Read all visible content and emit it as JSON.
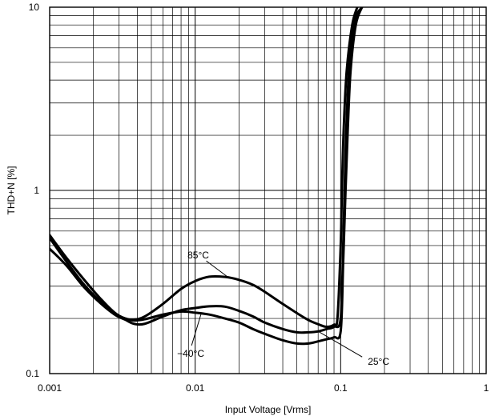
{
  "chart_data": {
    "type": "line",
    "xlabel": "Input Voltage [Vrms]",
    "ylabel": "THD+N [%]",
    "x_scale": "log",
    "y_scale": "log",
    "xlim": [
      0.001,
      1
    ],
    "ylim": [
      0.1,
      10
    ],
    "grid": true,
    "x_ticks": [
      "0.001",
      "0.01",
      "0.1",
      "1"
    ],
    "y_ticks": [
      "0.1",
      "1",
      "10"
    ],
    "series": [
      {
        "name": "85°C",
        "x": [
          0.001,
          0.0013,
          0.0017,
          0.0022,
          0.0028,
          0.0033,
          0.0038,
          0.0045,
          0.006,
          0.008,
          0.01,
          0.0125,
          0.016,
          0.02,
          0.025,
          0.03,
          0.04,
          0.05,
          0.06,
          0.07,
          0.08,
          0.09,
          0.095,
          0.1,
          0.102,
          0.105,
          0.11,
          0.12,
          0.13
        ],
        "values": [
          0.57,
          0.43,
          0.33,
          0.26,
          0.215,
          0.2,
          0.197,
          0.205,
          0.24,
          0.29,
          0.32,
          0.338,
          0.337,
          0.325,
          0.305,
          0.28,
          0.24,
          0.214,
          0.196,
          0.186,
          0.18,
          0.185,
          0.2,
          0.5,
          1.0,
          2.2,
          4.5,
          8.0,
          10.0
        ]
      },
      {
        "name": "25°C",
        "x": [
          0.001,
          0.0013,
          0.0017,
          0.0022,
          0.0028,
          0.0033,
          0.0038,
          0.0045,
          0.006,
          0.008,
          0.01,
          0.0125,
          0.016,
          0.02,
          0.025,
          0.03,
          0.04,
          0.05,
          0.06,
          0.07,
          0.08,
          0.09,
          0.1,
          0.104,
          0.107,
          0.11,
          0.115,
          0.125,
          0.14
        ],
        "values": [
          0.48,
          0.39,
          0.3,
          0.245,
          0.21,
          0.197,
          0.187,
          0.187,
          0.205,
          0.222,
          0.228,
          0.233,
          0.232,
          0.22,
          0.205,
          0.19,
          0.175,
          0.168,
          0.168,
          0.17,
          0.175,
          0.18,
          0.2,
          0.5,
          1.2,
          2.5,
          5.0,
          8.5,
          10.0
        ]
      },
      {
        "name": "−40°C",
        "x": [
          0.001,
          0.0013,
          0.0017,
          0.0022,
          0.0028,
          0.0033,
          0.0038,
          0.0045,
          0.006,
          0.008,
          0.01,
          0.0125,
          0.016,
          0.02,
          0.025,
          0.03,
          0.04,
          0.05,
          0.06,
          0.07,
          0.08,
          0.09,
          0.1,
          0.104,
          0.108,
          0.112,
          0.117,
          0.127,
          0.14
        ],
        "values": [
          0.55,
          0.41,
          0.31,
          0.25,
          0.213,
          0.2,
          0.195,
          0.198,
          0.21,
          0.218,
          0.215,
          0.21,
          0.2,
          0.19,
          0.175,
          0.165,
          0.152,
          0.146,
          0.146,
          0.15,
          0.154,
          0.158,
          0.17,
          0.4,
          1.0,
          2.2,
          4.5,
          8.0,
          10.0
        ]
      }
    ],
    "annotations": [
      {
        "text": "85°C",
        "series": "85°C",
        "at_x": 0.017
      },
      {
        "text": "25°C",
        "series": "25°C",
        "at_x": 0.07
      },
      {
        "text": "−40°C",
        "series": "−40°C",
        "at_x": 0.011
      }
    ]
  }
}
